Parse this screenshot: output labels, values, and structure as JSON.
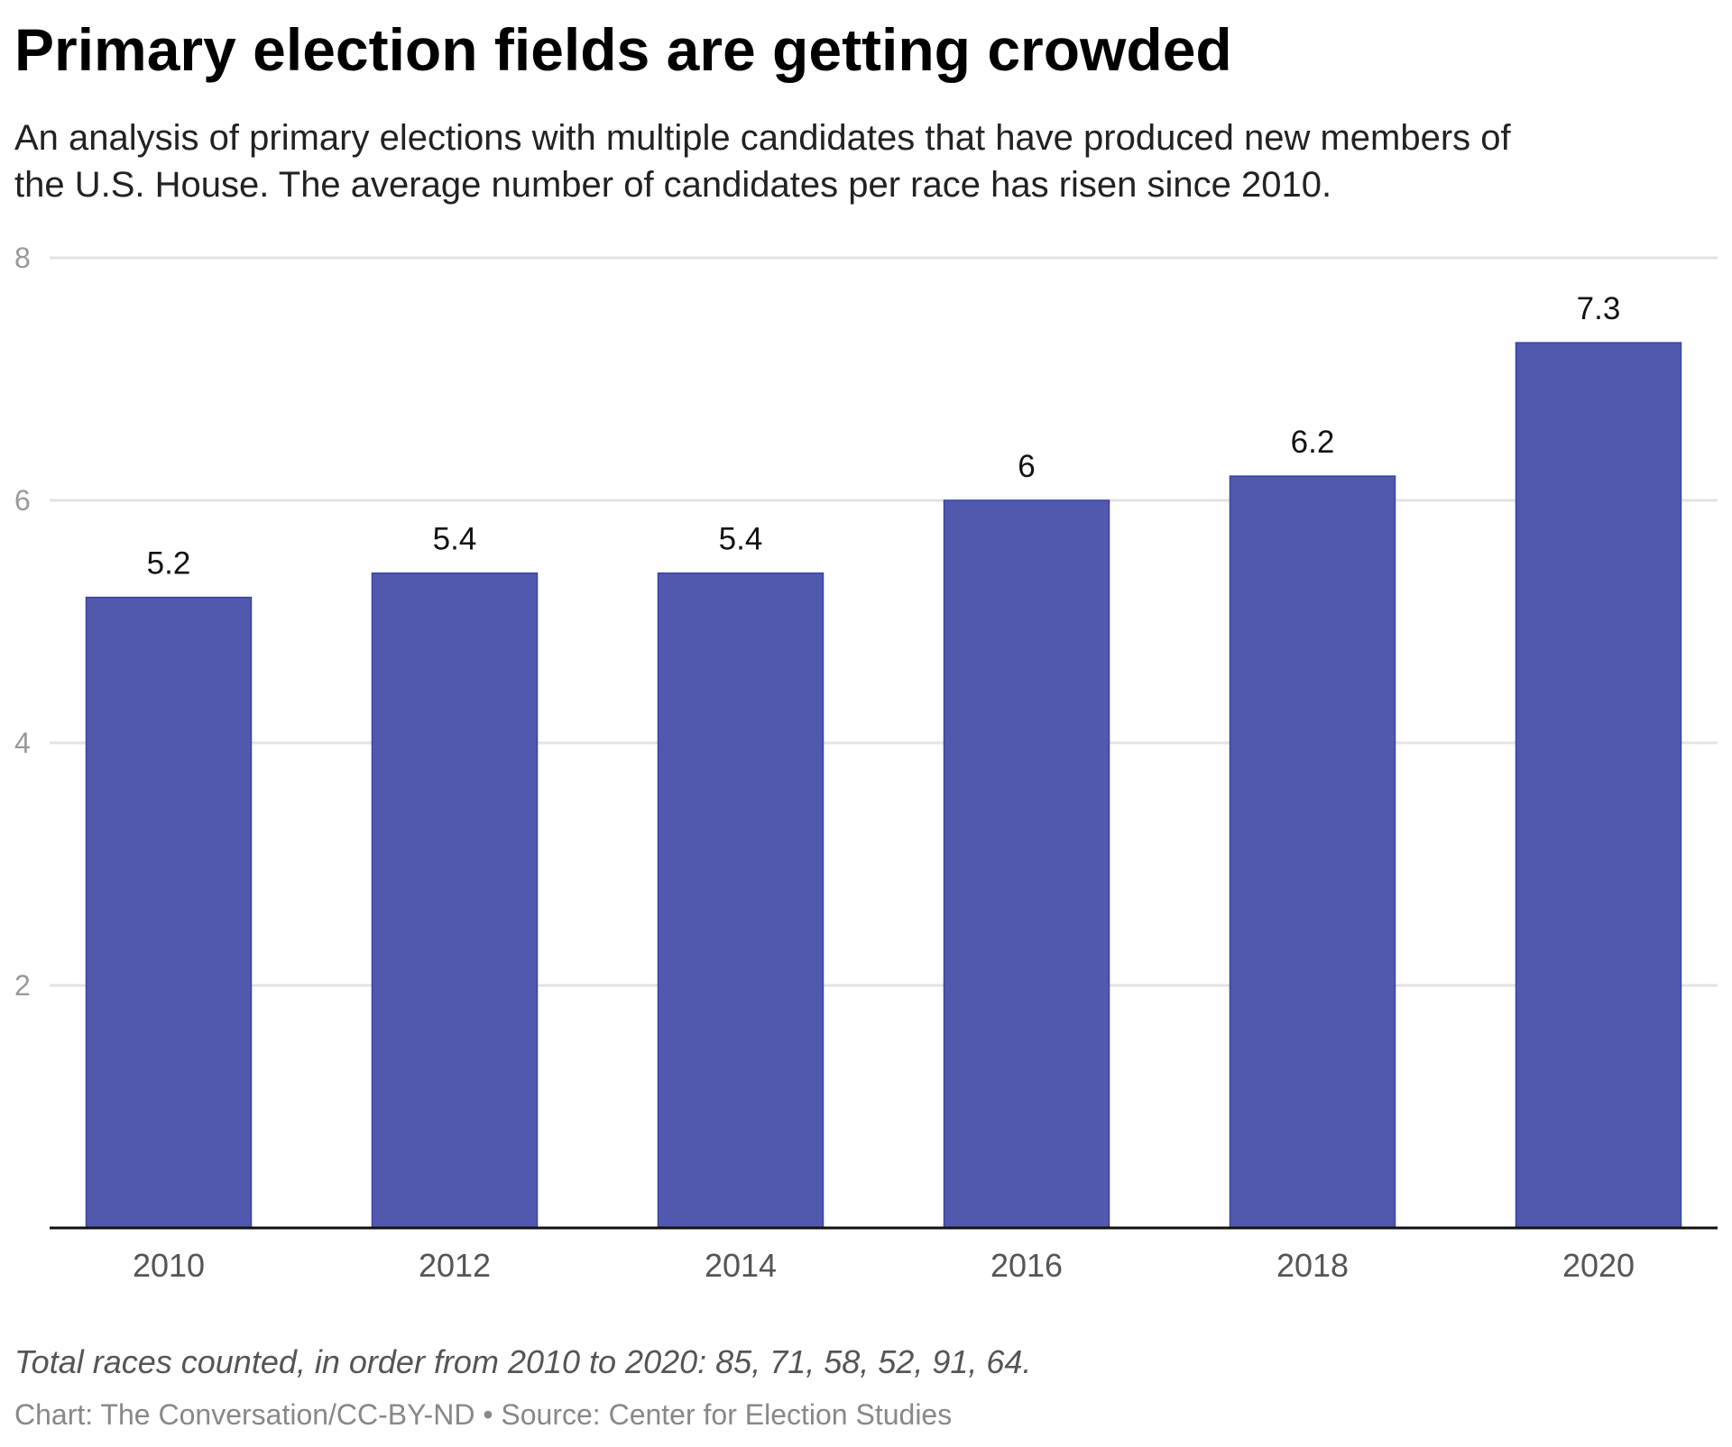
{
  "chart_data": {
    "type": "bar",
    "title": "Primary election fields are getting crowded",
    "subtitle_lines": [
      "An analysis of primary elections with multiple candidates that have produced new members of",
      "the U.S. House. The average number of candidates per race has risen since 2010."
    ],
    "categories": [
      "2010",
      "2012",
      "2014",
      "2016",
      "2018",
      "2020"
    ],
    "values": [
      5.2,
      5.4,
      5.4,
      6,
      6.2,
      7.3
    ],
    "value_labels": [
      "5.2",
      "5.4",
      "5.4",
      "6",
      "6.2",
      "7.3"
    ],
    "yticks": [
      2,
      4,
      6,
      8
    ],
    "ytick_labels": [
      "2",
      "4",
      "6",
      "8"
    ],
    "ylim": [
      0,
      8
    ],
    "xlabel": "",
    "ylabel": "",
    "grid": true,
    "bar_color": "#5059ae",
    "note": "Total races counted, in order from 2010 to 2020: 85, 71, 58, 52, 91, 64.",
    "credit": "Chart: The Conversation/CC-BY-ND • Source: Center for Election Studies"
  }
}
